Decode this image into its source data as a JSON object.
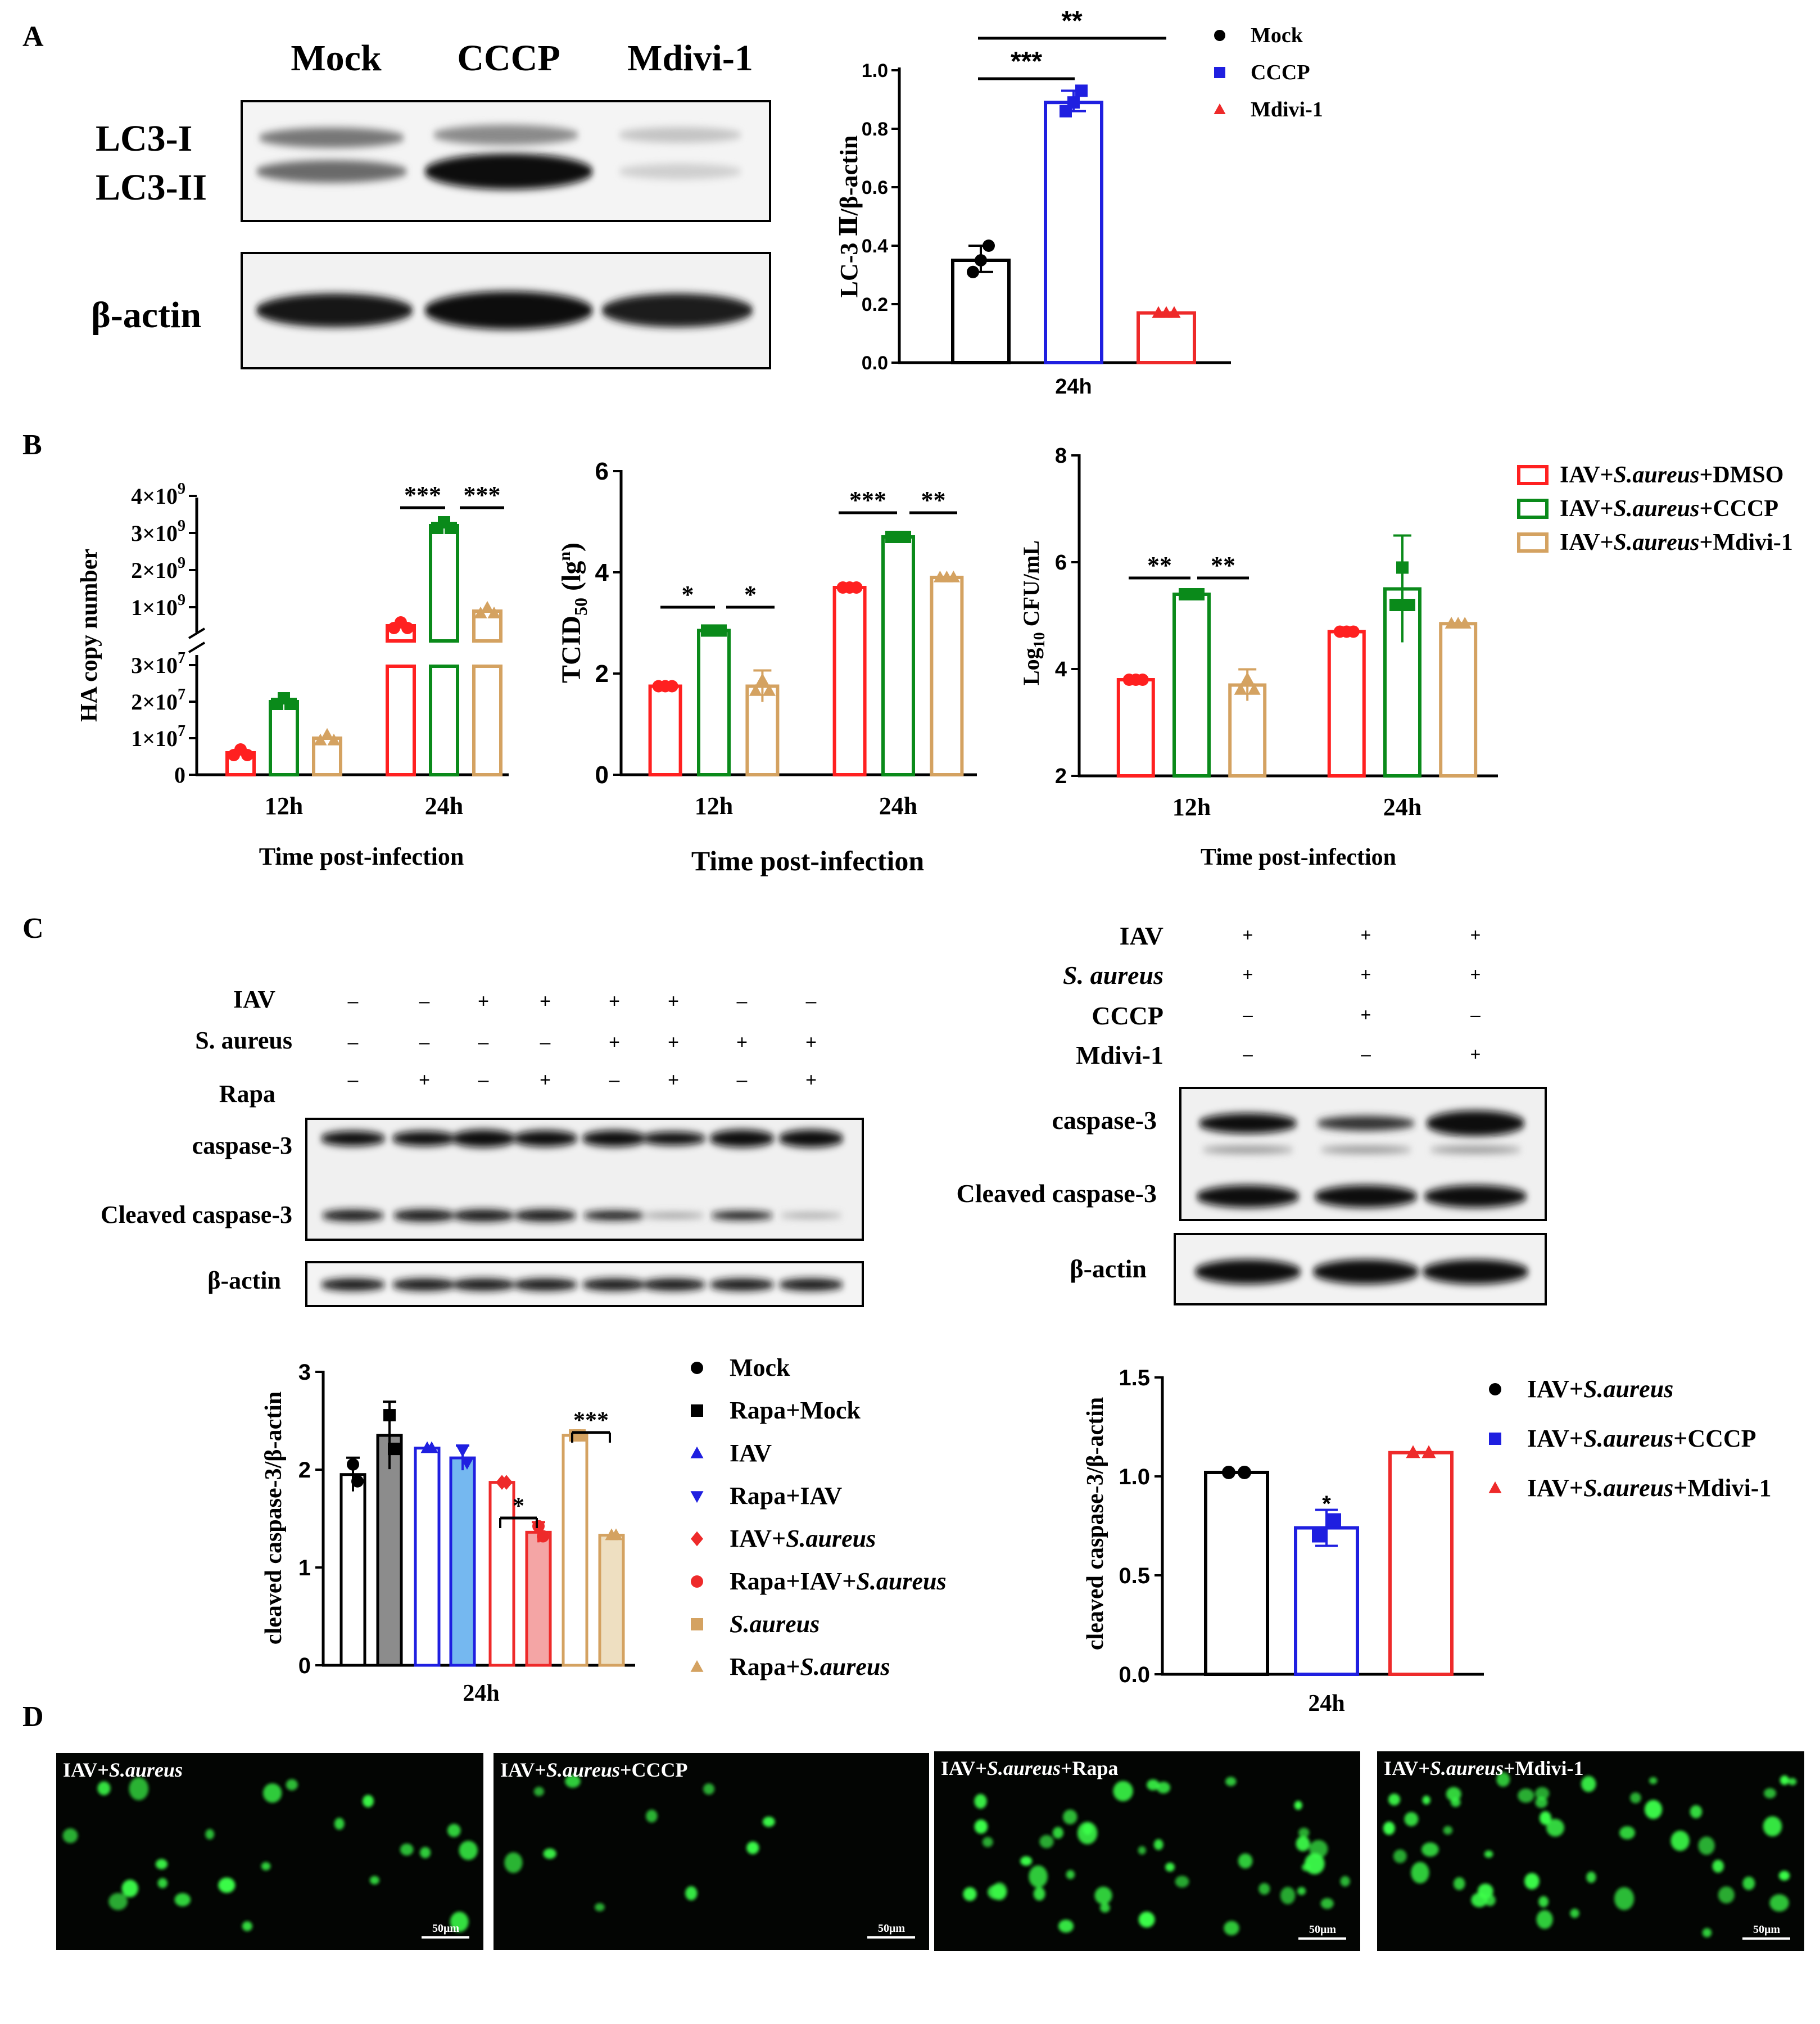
{
  "figure": {
    "panel_labels": [
      "A",
      "B",
      "C",
      "D"
    ],
    "colors": {
      "mock": "#000000",
      "cccp": "#1f1fe0",
      "mdivi": "#ee2a2a",
      "dmso_b": "#ff2020",
      "cccp_b": "#0a8a1a",
      "mdivi_b": "#d4a261",
      "gray": "#8c8c8c",
      "lightblue": "#75b8f0",
      "pink": "#f4a5a5",
      "cream": "#eedfc1",
      "blot_bg": "#f2f2f2",
      "fluor_bg": "#030503",
      "fluor_cell": "#3cff4a"
    }
  },
  "panel_a": {
    "blot": {
      "lanes": [
        "Mock",
        "CCCP",
        "Mdivi-1"
      ],
      "row_labels": [
        "LC3-I",
        "LC3-II"
      ],
      "loading_label": "β-actin"
    }
  },
  "panel_b": {
    "legend": [
      {
        "parts": [
          "IAV+",
          "S.aureus",
          "+DMSO"
        ],
        "color": "#ff2020"
      },
      {
        "parts": [
          "IAV+",
          "S.aureus",
          "+CCCP"
        ],
        "color": "#0a8a1a"
      },
      {
        "parts": [
          "IAV+",
          "S.aureus",
          "+Mdivi-1"
        ],
        "color": "#d4a261"
      }
    ]
  },
  "panel_c": {
    "left_blot": {
      "conditions": [
        {
          "label": "IAV",
          "signs": [
            "–",
            "–",
            "+",
            "+",
            "+",
            "+",
            "–",
            "–"
          ]
        },
        {
          "label": "S. aureus",
          "signs": [
            "–",
            "–",
            "–",
            "–",
            "+",
            "+",
            "+",
            "+"
          ]
        },
        {
          "label": "Rapa",
          "signs": [
            "–",
            "+",
            "–",
            "+",
            "–",
            "+",
            "–",
            "+"
          ]
        }
      ],
      "bands": [
        "caspase-3",
        "Cleaved caspase-3"
      ],
      "loading_label": "β-actin"
    },
    "right_blot": {
      "conditions": [
        {
          "label": "IAV",
          "italic": false,
          "signs": [
            "+",
            "+",
            "+"
          ]
        },
        {
          "label": "S. aureus",
          "italic": true,
          "signs": [
            "+",
            "+",
            "+"
          ]
        },
        {
          "label": "CCCP",
          "italic": false,
          "signs": [
            "–",
            "+",
            "–"
          ]
        },
        {
          "label": "Mdivi-1",
          "italic": false,
          "signs": [
            "–",
            "–",
            "+"
          ]
        }
      ],
      "bands": [
        "caspase-3",
        "Cleaved caspase-3"
      ],
      "loading_label": "β-actin"
    },
    "left_legend": [
      {
        "parts": [
          "Mock"
        ],
        "marker": "circle",
        "color": "#000000"
      },
      {
        "parts": [
          "Rapa+Mock"
        ],
        "marker": "square",
        "color": "#000000"
      },
      {
        "parts": [
          "IAV"
        ],
        "marker": "triangle",
        "color": "#1f1fe0"
      },
      {
        "parts": [
          "Rapa+IAV"
        ],
        "marker": "triangle-down",
        "color": "#1f1fe0"
      },
      {
        "parts": [
          "IAV+",
          "S.aureus"
        ],
        "marker": "diamond",
        "color": "#ee2a2a"
      },
      {
        "parts": [
          "Rapa+IAV+",
          "S.aureus"
        ],
        "marker": "circle",
        "color": "#ee2a2a"
      },
      {
        "parts": [
          "",
          "S.aureus"
        ],
        "marker": "square",
        "color": "#d4a261"
      },
      {
        "parts": [
          "Rapa+",
          "S.aureus"
        ],
        "marker": "triangle",
        "color": "#d4a261"
      }
    ],
    "right_legend": [
      {
        "parts": [
          "IAV+",
          "S.aureus"
        ],
        "marker": "circle",
        "color": "#000000"
      },
      {
        "parts": [
          "IAV+",
          "S.aureus",
          "+CCCP"
        ],
        "marker": "square",
        "color": "#1f1fe0"
      },
      {
        "parts": [
          "IAV+",
          "S.aureus",
          "+Mdivi-1"
        ],
        "marker": "triangle",
        "color": "#ee2a2a"
      }
    ]
  },
  "panel_d": {
    "images": [
      {
        "parts": [
          "IAV+",
          "S.aureus",
          ""
        ],
        "scale_bar": "50μm",
        "cells": 22
      },
      {
        "parts": [
          "IAV+",
          "S.aureus",
          "+CCCP"
        ],
        "scale_bar": "50μm",
        "cells": 10
      },
      {
        "parts": [
          "IAV+",
          "S.aureus",
          "+Rapa"
        ],
        "scale_bar": "50μm",
        "cells": 40
      },
      {
        "parts": [
          "IAV+",
          "S.aureus",
          "+Mdivi-1"
        ],
        "scale_bar": "50μm",
        "cells": 45
      }
    ]
  },
  "chart_data": [
    {
      "id": "A-lc3",
      "type": "bar",
      "categories": [
        "24h"
      ],
      "series": [
        {
          "name": "Mock",
          "values": [
            0.35
          ],
          "points": [
            0.31,
            0.35,
            0.4
          ],
          "marker": "circle",
          "color": "#000000"
        },
        {
          "name": "CCCP",
          "values": [
            0.89
          ],
          "points": [
            0.86,
            0.89,
            0.93
          ],
          "marker": "square",
          "color": "#1f1fe0"
        },
        {
          "name": "Mdivi-1",
          "values": [
            0.17
          ],
          "points": [
            0.17,
            0.17,
            0.17
          ],
          "marker": "triangle",
          "color": "#ee2a2a"
        }
      ],
      "ylabel": "LC-3 Ⅱ/β-actin",
      "ylim": [
        0,
        1.0
      ],
      "yticks": [
        "0.0",
        "0.2",
        "0.4",
        "0.6",
        "0.8",
        "1.0"
      ],
      "significance": [
        {
          "between": [
            "Mock",
            "CCCP"
          ],
          "label": "***"
        },
        {
          "between": [
            "Mock",
            "Mdivi-1"
          ],
          "label": "**"
        }
      ],
      "legend": "top-right"
    },
    {
      "id": "B-ha",
      "type": "bar",
      "categories": [
        "12h",
        "24h"
      ],
      "series": [
        {
          "name": "IAV+S.aureus+DMSO",
          "values": [
            6000000,
            600000000
          ]
        },
        {
          "name": "IAV+S.aureus+CCCP",
          "values": [
            20000000,
            3200000000
          ]
        },
        {
          "name": "IAV+S.aureus+Mdivi-1",
          "values": [
            10000000,
            900000000
          ]
        }
      ],
      "xlabel": "Time post-infection",
      "ylabel": "HA copy number",
      "axis_break": true,
      "yticks_lower": [
        "0",
        "1×10^7",
        "2×10^7",
        "3×10^7"
      ],
      "yticks_upper": [
        "1×10^9",
        "2×10^9",
        "3×10^9",
        "4×10^9"
      ],
      "significance": [
        {
          "category": "24h",
          "between": [
            "DMSO",
            "CCCP"
          ],
          "label": "***"
        },
        {
          "category": "24h",
          "between": [
            "CCCP",
            "Mdivi-1"
          ],
          "label": "***"
        }
      ]
    },
    {
      "id": "B-tcid",
      "type": "bar",
      "categories": [
        "12h",
        "24h"
      ],
      "series": [
        {
          "name": "IAV+S.aureus+DMSO",
          "values": [
            1.75,
            3.7
          ]
        },
        {
          "name": "IAV+S.aureus+CCCP",
          "values": [
            2.85,
            4.7
          ]
        },
        {
          "name": "IAV+S.aureus+Mdivi-1",
          "values": [
            1.75,
            3.9
          ]
        }
      ],
      "xlabel": "Time post-infection",
      "ylabel": "TCID50 (lg^n)",
      "ylim": [
        0,
        6
      ],
      "yticks": [
        "0",
        "2",
        "4",
        "6"
      ],
      "significance": [
        {
          "category": "12h",
          "between": [
            "DMSO",
            "CCCP"
          ],
          "label": "*"
        },
        {
          "category": "12h",
          "between": [
            "CCCP",
            "Mdivi-1"
          ],
          "label": "*"
        },
        {
          "category": "24h",
          "between": [
            "DMSO",
            "CCCP"
          ],
          "label": "***"
        },
        {
          "category": "24h",
          "between": [
            "CCCP",
            "Mdivi-1"
          ],
          "label": "**"
        }
      ]
    },
    {
      "id": "B-cfu",
      "type": "bar",
      "categories": [
        "12h",
        "24h"
      ],
      "series": [
        {
          "name": "IAV+S.aureus+DMSO",
          "values": [
            3.8,
            4.7
          ]
        },
        {
          "name": "IAV+S.aureus+CCCP",
          "values": [
            5.4,
            5.5
          ]
        },
        {
          "name": "IAV+S.aureus+Mdivi-1",
          "values": [
            3.7,
            4.85
          ]
        }
      ],
      "xlabel": "Time post-infection",
      "ylabel": "Log10 CFU/mL",
      "ylim": [
        2,
        8
      ],
      "yticks": [
        "2",
        "4",
        "6",
        "8"
      ],
      "significance": [
        {
          "category": "12h",
          "between": [
            "DMSO",
            "CCCP"
          ],
          "label": "**"
        },
        {
          "category": "12h",
          "between": [
            "CCCP",
            "Mdivi-1"
          ],
          "label": "**"
        }
      ]
    },
    {
      "id": "C-left",
      "type": "bar",
      "categories": [
        "24h"
      ],
      "series": [
        {
          "name": "Mock",
          "values": [
            1.95
          ]
        },
        {
          "name": "Rapa+Mock",
          "values": [
            2.35
          ]
        },
        {
          "name": "IAV",
          "values": [
            2.22
          ]
        },
        {
          "name": "Rapa+IAV",
          "values": [
            2.12
          ]
        },
        {
          "name": "IAV+S.aureus",
          "values": [
            1.87
          ]
        },
        {
          "name": "Rapa+IAV+S.aureus",
          "values": [
            1.36
          ]
        },
        {
          "name": "S.aureus",
          "values": [
            2.35
          ]
        },
        {
          "name": "Rapa+S.aureus",
          "values": [
            1.33
          ]
        }
      ],
      "ylabel": "cleaved caspase-3/β-actin",
      "ylim": [
        0,
        3
      ],
      "yticks": [
        "0",
        "1",
        "2",
        "3"
      ],
      "significance": [
        {
          "between": [
            "IAV+S.aureus",
            "Rapa+IAV+S.aureus"
          ],
          "label": "*"
        },
        {
          "between": [
            "S.aureus",
            "Rapa+S.aureus"
          ],
          "label": "***"
        }
      ]
    },
    {
      "id": "C-right",
      "type": "bar",
      "categories": [
        "24h"
      ],
      "series": [
        {
          "name": "IAV+S.aureus",
          "values": [
            1.02
          ]
        },
        {
          "name": "IAV+S.aureus+CCCP",
          "values": [
            0.74
          ]
        },
        {
          "name": "IAV+S.aureus+Mdivi-1",
          "values": [
            1.12
          ]
        }
      ],
      "ylabel": "cleaved caspase-3/β-actin",
      "ylim": [
        0,
        1.5
      ],
      "yticks": [
        "0.0",
        "0.5",
        "1.0",
        "1.5"
      ],
      "significance": [
        {
          "between": [
            "IAV+S.aureus+CCCP"
          ],
          "label": "*"
        }
      ]
    }
  ]
}
